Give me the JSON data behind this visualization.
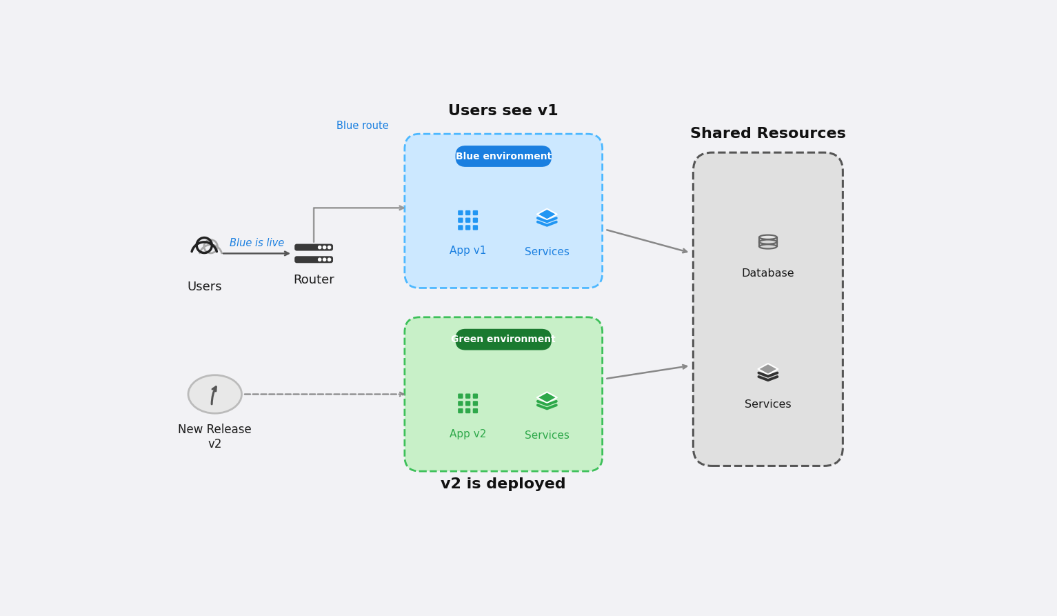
{
  "bg_color": "#f2f2f5",
  "blue_color": "#1a7fe0",
  "green_color": "#2ea84a",
  "blue_env_bg": "#cce8ff",
  "green_env_bg": "#c8f0c8",
  "blue_border": "#4db8ff",
  "green_border": "#3ec05a",
  "shared_bg": "#e0e0e0",
  "shared_border": "#555555",
  "router_color": "#444444",
  "users_label": "Users",
  "router_label": "Router",
  "blue_is_live": "Blue is live",
  "blue_route": "Blue route",
  "users_see_v1": "Users see v1",
  "v2_deployed": "v2 is deployed",
  "blue_env_label": "Blue environment",
  "green_env_label": "Green environment",
  "app_v1_label": "App v1",
  "services_blue_label": "Services",
  "app_v2_label": "App v2",
  "services_green_label": "Services",
  "shared_resources_label": "Shared Resources",
  "database_label": "Database",
  "shared_services_label": "Services",
  "new_release_label": "New Release\nv2",
  "figw": 15.33,
  "figh": 8.93
}
